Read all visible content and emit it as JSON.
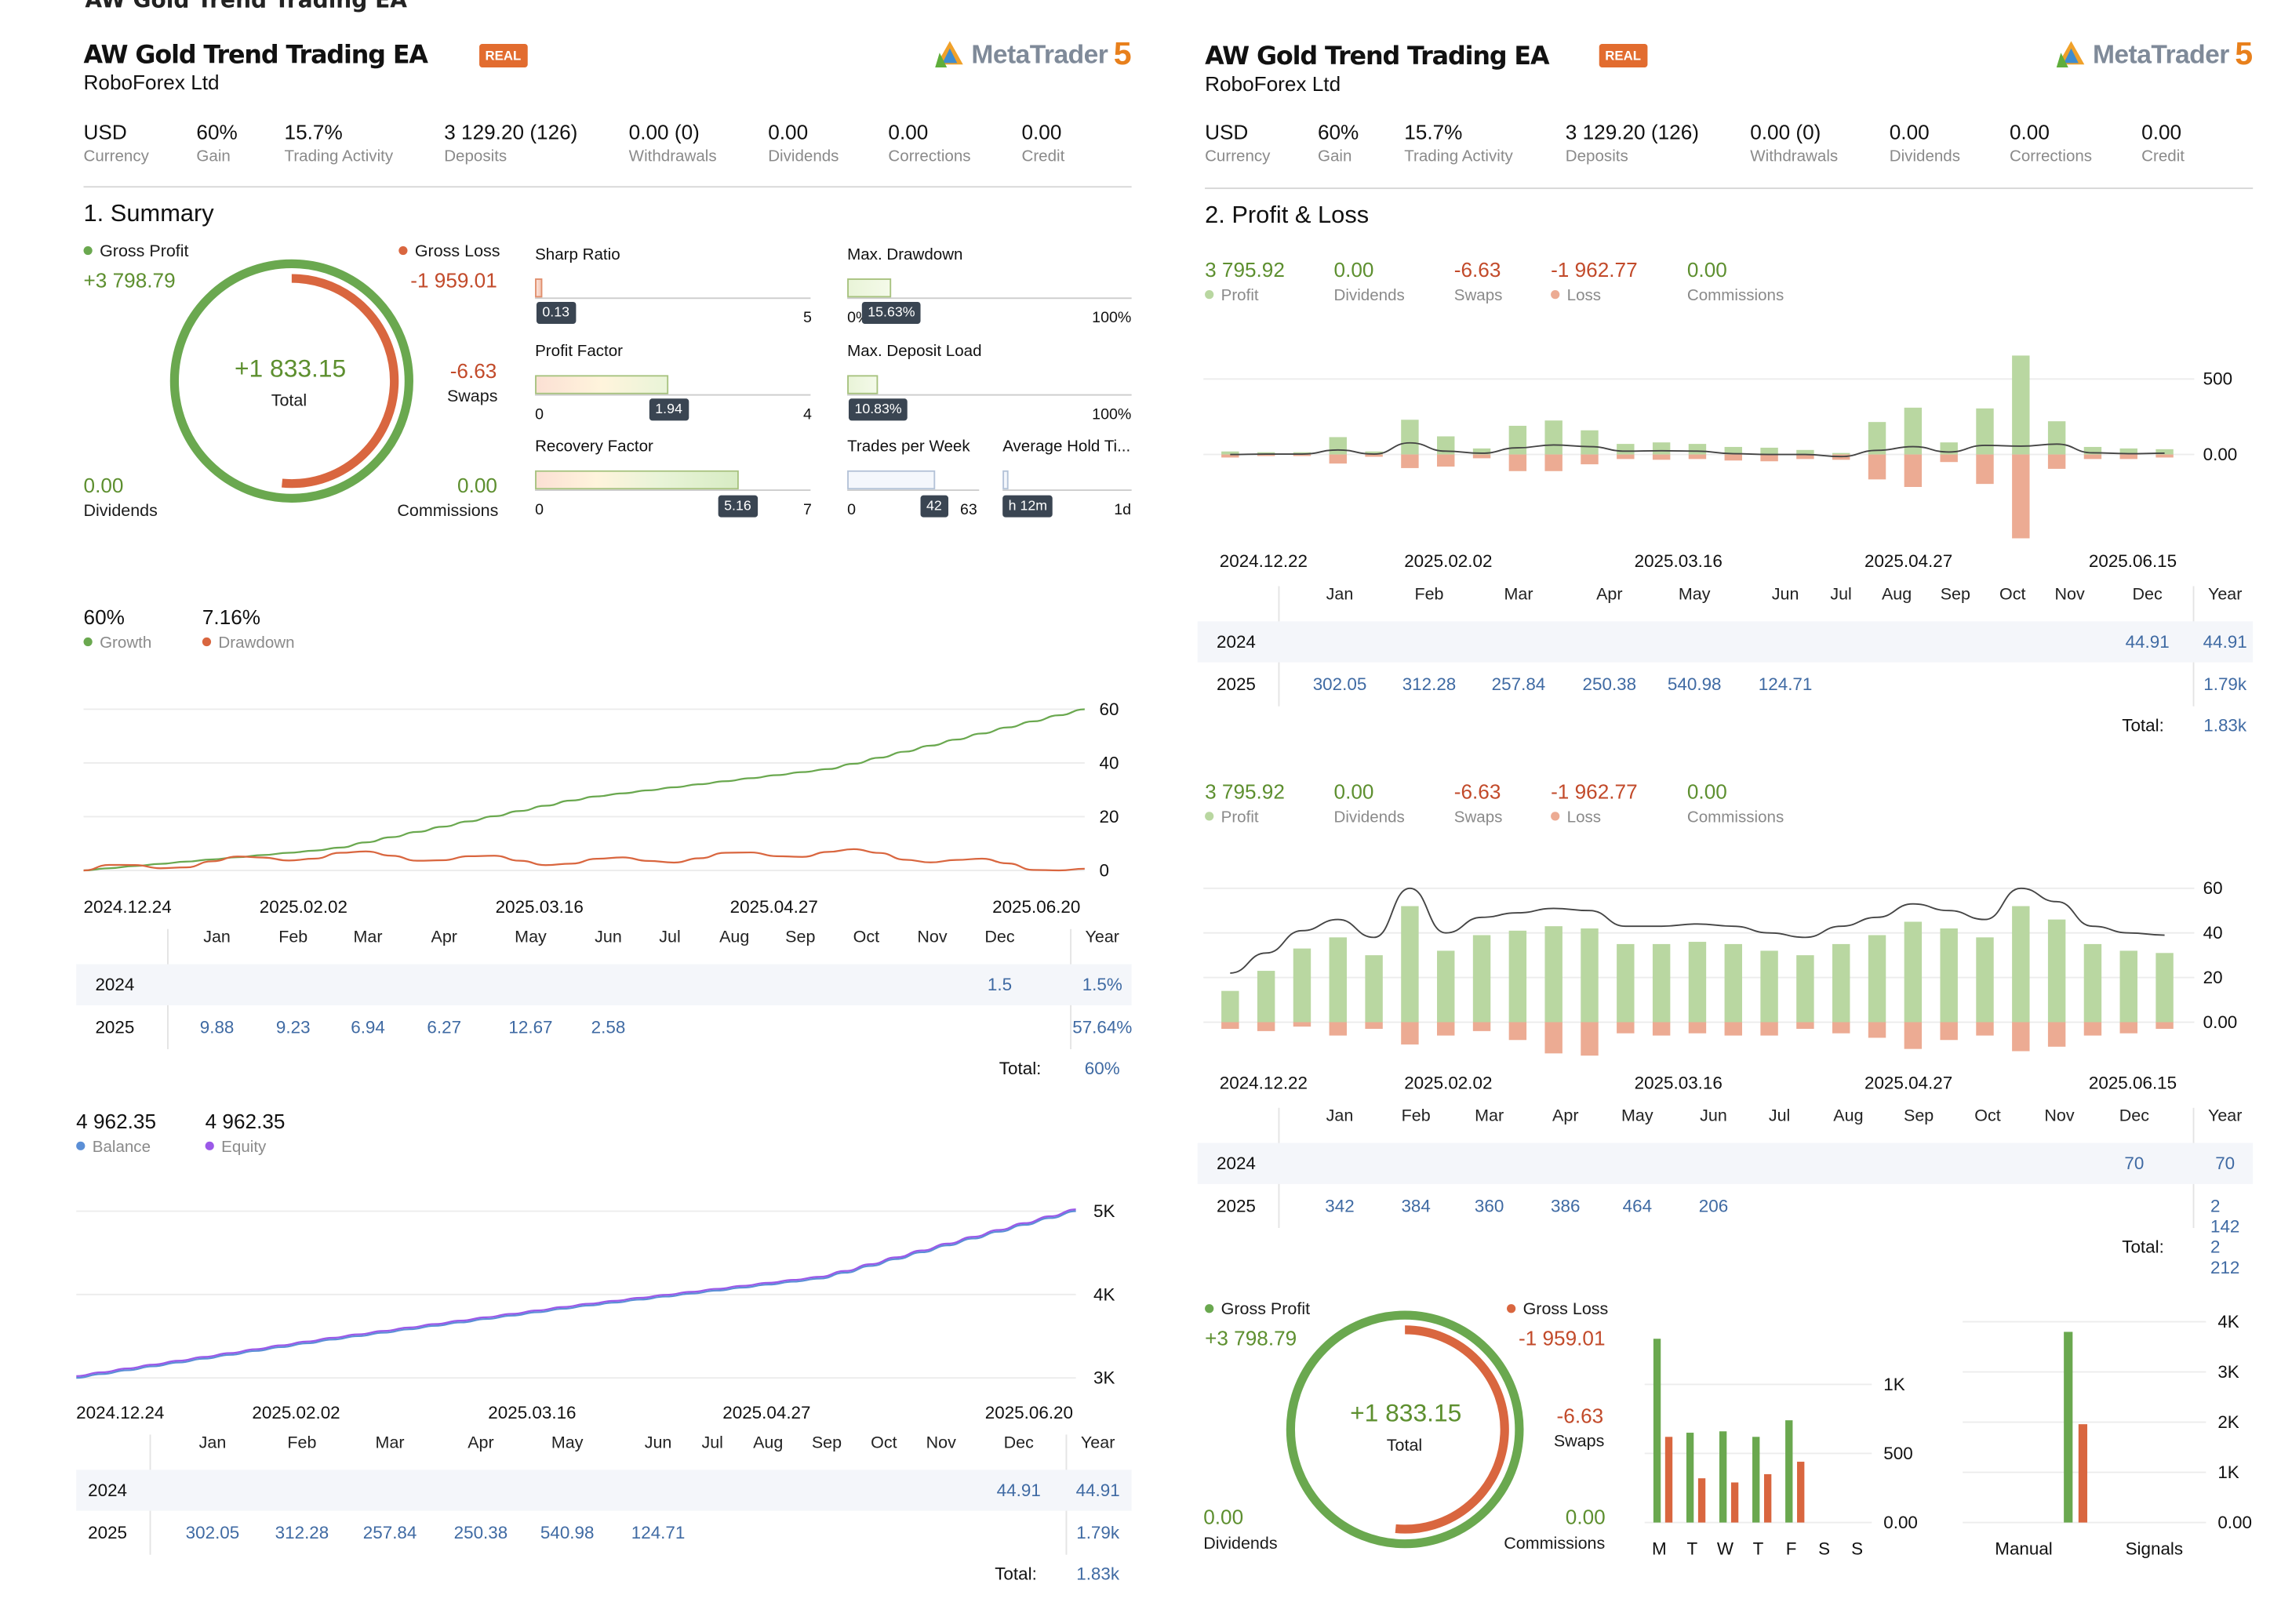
{
  "header": {
    "cut_title": "AW Gold Trend Trading EA",
    "title": "AW Gold Trend Trading EA",
    "broker": "RoboForex Ltd",
    "badge": "REAL",
    "logo_text": "MetaTrader",
    "logo_num": "5"
  },
  "stats": [
    {
      "value": "USD",
      "label": "Currency"
    },
    {
      "value": "60%",
      "label": "Gain"
    },
    {
      "value": "15.7%",
      "label": "Trading Activity"
    },
    {
      "value": "3 129.20 (126)",
      "label": "Deposits"
    },
    {
      "value": "0.00 (0)",
      "label": "Withdrawals"
    },
    {
      "value": "0.00",
      "label": "Dividends"
    },
    {
      "value": "0.00",
      "label": "Corrections"
    },
    {
      "value": "0.00",
      "label": "Credit"
    }
  ],
  "summary": {
    "heading": "1. Summary",
    "gross_profit_label": "Gross Profit",
    "gross_profit": "+3 798.79",
    "gross_loss_label": "Gross Loss",
    "gross_loss": "-1 959.01",
    "total": "+1 833.15",
    "total_label": "Total",
    "swaps": "-6.63",
    "swaps_label": "Swaps",
    "dividends": "0.00",
    "dividends_label": "Dividends",
    "commissions": "0.00",
    "commissions_label": "Commissions",
    "ring_profit_fraction": 1.0,
    "ring_loss_fraction": 0.515,
    "meters": {
      "sharp": {
        "label": "Sharp Ratio",
        "value": "0.13",
        "min": "",
        "max": "5",
        "fraction": 0.026
      },
      "profit_factor": {
        "label": "Profit Factor",
        "value": "1.94",
        "min": "0",
        "max": "4",
        "fraction": 0.485
      },
      "recovery": {
        "label": "Recovery Factor",
        "value": "5.16",
        "min": "0",
        "max": "7",
        "fraction": 0.737
      },
      "drawdown": {
        "label": "Max. Drawdown",
        "value": "15.63%",
        "min": "0%",
        "max": "100%",
        "fraction": 0.156
      },
      "deposit_load": {
        "label": "Max. Deposit Load",
        "value": "10.83%",
        "min": "",
        "max": "100%",
        "fraction": 0.108
      },
      "trades_week": {
        "label": "Trades per Week",
        "value": "42",
        "min": "0",
        "max": "63",
        "fraction": 0.667
      },
      "hold_time": {
        "label": "Average Hold Ti...",
        "value": "h 12m",
        "min": "",
        "max": "1d",
        "fraction": 0.05
      }
    }
  },
  "growth": {
    "growth_value": "60%",
    "growth_label": "Growth",
    "drawdown_value": "7.16%",
    "drawdown_label": "Drawdown",
    "x_labels": [
      "2024.12.24",
      "2025.02.02",
      "2025.03.16",
      "2025.04.27",
      "2025.06.20"
    ],
    "total_label": "Total:",
    "total_value": "60%"
  },
  "balance": {
    "balance_value": "4 962.35",
    "balance_label": "Balance",
    "equity_value": "4 962.35",
    "equity_label": "Equity",
    "x_labels": [
      "2024.12.24",
      "2025.02.02",
      "2025.03.16",
      "2025.04.27",
      "2025.06.20"
    ],
    "total_label": "Total:",
    "total_value": "1.83k"
  },
  "pl": {
    "heading": "2. Profit & Loss",
    "stats": [
      {
        "value": "3 795.92",
        "label": "Profit"
      },
      {
        "value": "0.00",
        "label": "Dividends"
      },
      {
        "value": "-6.63",
        "label": "Swaps"
      },
      {
        "value": "-1 962.77",
        "label": "Loss"
      },
      {
        "value": "0.00",
        "label": "Commissions"
      }
    ],
    "x_labels": [
      "2024.12.22",
      "2025.02.02",
      "2025.03.16",
      "2025.04.27",
      "2025.06.15"
    ],
    "total1_label": "Total:",
    "total1_value": "1.83k",
    "total2_label": "Total:",
    "total2_value": "2 212"
  },
  "months": [
    "Jan",
    "Feb",
    "Mar",
    "Apr",
    "May",
    "Jun",
    "Jul",
    "Aug",
    "Sep",
    "Oct",
    "Nov",
    "Dec",
    "Year"
  ],
  "tables": {
    "growth": {
      "rows": [
        {
          "year": "2024",
          "cells": [
            "",
            "",
            "",
            "",
            "",
            "",
            "",
            "",
            "",
            "",
            "",
            "1.5",
            "1.5%"
          ]
        },
        {
          "year": "2025",
          "cells": [
            "9.88",
            "9.23",
            "6.94",
            "6.27",
            "12.67",
            "2.58",
            "",
            "",
            "",
            "",
            "",
            "",
            "57.64%"
          ]
        }
      ]
    },
    "balance": {
      "rows": [
        {
          "year": "2024",
          "cells": [
            "",
            "",
            "",
            "",
            "",
            "",
            "",
            "",
            "",
            "",
            "",
            "44.91",
            "44.91"
          ]
        },
        {
          "year": "2025",
          "cells": [
            "302.05",
            "312.28",
            "257.84",
            "250.38",
            "540.98",
            "124.71",
            "",
            "",
            "",
            "",
            "",
            "",
            "1.79k"
          ]
        }
      ]
    },
    "pl1": {
      "rows": [
        {
          "year": "2024",
          "cells": [
            "",
            "",
            "",
            "",
            "",
            "",
            "",
            "",
            "",
            "",
            "",
            "44.91",
            "44.91"
          ]
        },
        {
          "year": "2025",
          "cells": [
            "302.05",
            "312.28",
            "257.84",
            "250.38",
            "540.98",
            "124.71",
            "",
            "",
            "",
            "",
            "",
            "",
            "1.79k"
          ]
        }
      ]
    },
    "pl2": {
      "rows": [
        {
          "year": "2024",
          "cells": [
            "",
            "",
            "",
            "",
            "",
            "",
            "",
            "",
            "",
            "",
            "",
            "70",
            "70"
          ]
        },
        {
          "year": "2025",
          "cells": [
            "342",
            "384",
            "360",
            "386",
            "464",
            "206",
            "",
            "",
            "",
            "",
            "",
            "",
            "2 142"
          ]
        }
      ]
    }
  },
  "weekday": {
    "labels": [
      "M",
      "T",
      "W",
      "T",
      "F",
      "S",
      "S"
    ],
    "y_ticks": [
      "1K",
      "500",
      "0.00"
    ]
  },
  "trade_source": {
    "labels": [
      "Manual",
      "Signals"
    ],
    "y_ticks": [
      "4K",
      "3K",
      "2K",
      "1K",
      "0.00"
    ]
  },
  "colors": {
    "profit": "#6aa84f",
    "loss": "#d9663f",
    "profit_light": "#b9d7a1",
    "loss_light": "#ecab93",
    "balance": "#5b8fd6",
    "equity": "#9b59e8",
    "link": "#3f6aa3"
  },
  "chart_data": [
    {
      "type": "line",
      "title": "",
      "x": [
        "2024.12.24",
        "2025.02.02",
        "2025.03.16",
        "2025.04.27",
        "2025.06.20"
      ],
      "ylim": [
        0,
        60
      ],
      "y_ticks": [
        0,
        20,
        40,
        60
      ],
      "series": [
        {
          "name": "Growth",
          "values": [
            0,
            8,
            27,
            38,
            60
          ]
        },
        {
          "name": "Drawdown",
          "values": [
            0,
            6,
            3,
            7,
            0
          ]
        }
      ]
    },
    {
      "type": "line",
      "title": "",
      "x": [
        "2024.12.24",
        "2025.02.02",
        "2025.03.16",
        "2025.04.27",
        "2025.06.20"
      ],
      "y_ticks": [
        "3K",
        "4K",
        "5K"
      ],
      "ylim": [
        2900,
        5150
      ],
      "series": [
        {
          "name": "Balance",
          "values": [
            3000,
            3450,
            3850,
            4200,
            5000
          ]
        },
        {
          "name": "Equity",
          "values": [
            3000,
            3450,
            3850,
            4200,
            5000
          ]
        }
      ]
    },
    {
      "type": "bar",
      "title": "",
      "y_ticks": [
        "0.00",
        "500"
      ],
      "ylim": [
        -600,
        700
      ],
      "series": [
        {
          "name": "Profit",
          "values": [
            20,
            15,
            15,
            115,
            20,
            230,
            120,
            40,
            190,
            225,
            160,
            70,
            80,
            70,
            50,
            45,
            30,
            10,
            215,
            310,
            80,
            305,
            655,
            220,
            50,
            40,
            35
          ]
        },
        {
          "name": "Loss",
          "values": [
            -20,
            -10,
            -10,
            -60,
            -15,
            -90,
            -80,
            -25,
            -110,
            -110,
            -65,
            -30,
            -35,
            -30,
            -40,
            -45,
            -30,
            -35,
            -165,
            -215,
            -50,
            -195,
            -555,
            -95,
            -30,
            -30,
            -20
          ]
        }
      ]
    },
    {
      "type": "bar",
      "title": "",
      "y_ticks": [
        "0.00",
        "20",
        "40",
        "60"
      ],
      "ylim": [
        -20,
        68
      ],
      "series": [
        {
          "name": "Profit",
          "values": [
            14,
            23,
            33,
            38,
            30,
            52,
            32,
            39,
            41,
            43,
            42,
            35,
            35,
            36,
            35,
            32,
            30,
            35,
            39,
            45,
            42,
            38,
            52,
            46,
            35,
            32,
            31
          ]
        },
        {
          "name": "Loss",
          "values": [
            -3,
            -4,
            -2,
            -6,
            -3,
            -10,
            -6,
            -4,
            -8,
            -14,
            -15,
            -5,
            -6,
            -5,
            -6,
            -6,
            -3,
            -5,
            -7,
            -12,
            -8,
            -6,
            -13,
            -11,
            -6,
            -5,
            -3
          ]
        }
      ]
    },
    {
      "type": "bar",
      "title": "",
      "categories": [
        "M",
        "T",
        "W",
        "T",
        "F",
        "S",
        "S"
      ],
      "series": [
        {
          "name": "Profit",
          "values": [
            1330,
            650,
            660,
            620,
            740,
            0,
            0
          ]
        },
        {
          "name": "Loss",
          "values": [
            620,
            320,
            290,
            350,
            440,
            0,
            0
          ]
        }
      ],
      "ylim": [
        0,
        1400
      ]
    },
    {
      "type": "bar",
      "title": "",
      "categories": [
        "Manual",
        "Signals"
      ],
      "series": [
        {
          "name": "Profit",
          "values": [
            3798.79,
            0
          ]
        },
        {
          "name": "Loss",
          "values": [
            1959.01,
            0
          ]
        }
      ],
      "ylim": [
        0,
        4000
      ]
    }
  ]
}
